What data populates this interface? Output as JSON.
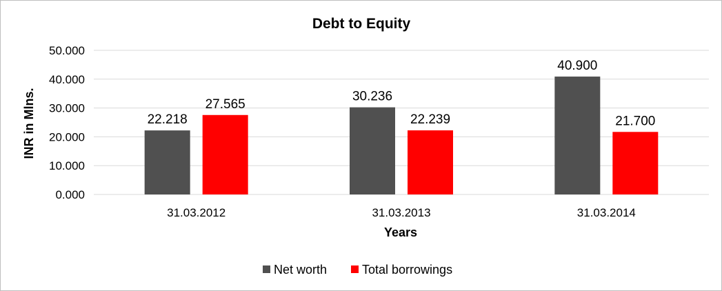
{
  "chart_data": {
    "type": "bar",
    "title": "Debt to Equity",
    "xlabel": "Years",
    "ylabel": "INR in Mlns.",
    "categories": [
      "31.03.2012",
      "31.03.2013",
      "31.03.2014"
    ],
    "series": [
      {
        "name": "Net worth",
        "color": "#505050",
        "values": [
          22.218,
          30.236,
          40.9
        ],
        "labels": [
          "22.218",
          "30.236",
          "40.900"
        ]
      },
      {
        "name": "Total borrowings",
        "color": "#ff0000",
        "values": [
          27.565,
          22.239,
          21.7
        ],
        "labels": [
          "27.565",
          "22.239",
          "21.700"
        ]
      }
    ],
    "ylim": [
      0,
      50
    ],
    "yticks": [
      0,
      10,
      20,
      30,
      40,
      50
    ],
    "ytick_labels": [
      "0.000",
      "10.000",
      "20.000",
      "30.000",
      "40.000",
      "50.000"
    ],
    "grid": true,
    "legend_position": "bottom"
  }
}
